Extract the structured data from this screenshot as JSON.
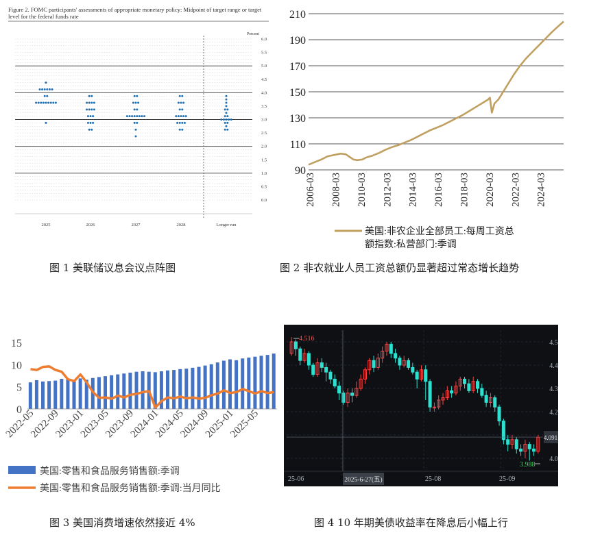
{
  "captions": {
    "fig1": "图 1  美联储议息会议点阵图",
    "fig2": "图 2 非农就业人员工资总额仍显著超过常态增长趋势",
    "fig3": "图 3  美国消费增速依然接近 4%",
    "fig4": "图 4  10 年期美债收益率在降息后小幅上行"
  },
  "chart_data": [
    {
      "id": "dot-plot",
      "type": "scatter",
      "title": "Figure 2. FOMC participants' assessments of appropriate monetary policy: Midpoint of target range or target level for the federal funds rate",
      "ylabel": "Percent",
      "ylim": [
        0,
        6
      ],
      "y_ticks": [
        "6.0",
        "5.5",
        "5.0",
        "4.5",
        "4.0",
        "3.5",
        "3.0",
        "2.5",
        "2.0",
        "1.5",
        "1.0",
        "0.5",
        "0.0"
      ],
      "categories": [
        "2025",
        "2026",
        "2027",
        "2028",
        "Longer run"
      ],
      "dots": [
        {
          "category": "2025",
          "levels": [
            {
              "y": 4.375,
              "n": 1
            },
            {
              "y": 4.125,
              "n": 6
            },
            {
              "y": 3.875,
              "n": 2
            },
            {
              "y": 3.625,
              "n": 9
            },
            {
              "y": 2.875,
              "n": 1
            }
          ]
        },
        {
          "category": "2026",
          "levels": [
            {
              "y": 3.875,
              "n": 2
            },
            {
              "y": 3.625,
              "n": 4
            },
            {
              "y": 3.375,
              "n": 4
            },
            {
              "y": 3.125,
              "n": 3
            },
            {
              "y": 2.875,
              "n": 3
            },
            {
              "y": 2.625,
              "n": 2
            }
          ]
        },
        {
          "category": "2027",
          "levels": [
            {
              "y": 3.875,
              "n": 2
            },
            {
              "y": 3.625,
              "n": 3
            },
            {
              "y": 3.375,
              "n": 2
            },
            {
              "y": 3.125,
              "n": 8
            },
            {
              "y": 2.875,
              "n": 2
            },
            {
              "y": 2.625,
              "n": 1
            },
            {
              "y": 2.375,
              "n": 1
            }
          ]
        },
        {
          "category": "2028",
          "levels": [
            {
              "y": 3.875,
              "n": 2
            },
            {
              "y": 3.625,
              "n": 3
            },
            {
              "y": 3.375,
              "n": 2
            },
            {
              "y": 3.125,
              "n": 5
            },
            {
              "y": 2.875,
              "n": 4
            },
            {
              "y": 2.625,
              "n": 2
            }
          ]
        },
        {
          "category": "Longer run",
          "levels": [
            {
              "y": 3.875,
              "n": 1
            },
            {
              "y": 3.75,
              "n": 1
            },
            {
              "y": 3.625,
              "n": 1
            },
            {
              "y": 3.5,
              "n": 1
            },
            {
              "y": 3.375,
              "n": 2
            },
            {
              "y": 3.25,
              "n": 1
            },
            {
              "y": 3.125,
              "n": 2
            },
            {
              "y": 3.0,
              "n": 5
            },
            {
              "y": 2.875,
              "n": 2
            },
            {
              "y": 2.75,
              "n": 1
            },
            {
              "y": 2.625,
              "n": 2
            }
          ]
        }
      ]
    },
    {
      "id": "payroll-line",
      "type": "line",
      "ylim": [
        90,
        210
      ],
      "y_ticks": [
        90,
        110,
        130,
        150,
        170,
        190,
        210
      ],
      "x_ticks": [
        "2006-03",
        "2008-03",
        "2010-03",
        "2012-03",
        "2014-03",
        "2016-03",
        "2018-03",
        "2020-03",
        "2022-03",
        "2024-03"
      ],
      "xlim": [
        2006.0,
        2025.9
      ],
      "series": [
        {
          "name": "美国:非农企业全部员工:每周工资总额指数:私营部门:季调",
          "color": "#c0a060",
          "points": [
            [
              2006.0,
              94
            ],
            [
              2006.5,
              96
            ],
            [
              2007.0,
              98
            ],
            [
              2007.5,
              100.5
            ],
            [
              2008.0,
              101.5
            ],
            [
              2008.5,
              102.5
            ],
            [
              2008.9,
              102
            ],
            [
              2009.2,
              100
            ],
            [
              2009.5,
              98
            ],
            [
              2009.8,
              97.5
            ],
            [
              2010.2,
              98
            ],
            [
              2010.5,
              99.5
            ],
            [
              2011.0,
              101
            ],
            [
              2011.5,
              103
            ],
            [
              2012.0,
              105.5
            ],
            [
              2012.5,
              107.5
            ],
            [
              2013.0,
              109
            ],
            [
              2013.5,
              111
            ],
            [
              2014.0,
              113
            ],
            [
              2014.5,
              115.5
            ],
            [
              2015.0,
              118
            ],
            [
              2015.5,
              120.5
            ],
            [
              2016.0,
              122.5
            ],
            [
              2016.5,
              124.5
            ],
            [
              2017.0,
              127
            ],
            [
              2017.5,
              129.5
            ],
            [
              2018.0,
              132
            ],
            [
              2018.5,
              135
            ],
            [
              2019.0,
              138
            ],
            [
              2019.5,
              141
            ],
            [
              2020.0,
              144
            ],
            [
              2020.15,
              145.5
            ],
            [
              2020.3,
              134
            ],
            [
              2020.5,
              141
            ],
            [
              2020.8,
              144
            ],
            [
              2021.0,
              147
            ],
            [
              2021.5,
              155
            ],
            [
              2022.0,
              163
            ],
            [
              2022.5,
              170
            ],
            [
              2023.0,
              176
            ],
            [
              2023.5,
              181
            ],
            [
              2024.0,
              186
            ],
            [
              2024.5,
              191
            ],
            [
              2025.0,
              196
            ],
            [
              2025.5,
              200.5
            ],
            [
              2025.9,
              204
            ]
          ]
        }
      ]
    },
    {
      "id": "retail-combo",
      "type": "bar",
      "ylim": [
        0,
        15
      ],
      "y_ticks": [
        0,
        5,
        10,
        15
      ],
      "x_ticks": [
        "2022-05",
        "2022-09",
        "2023-01",
        "2023-05",
        "2023-09",
        "2024-01",
        "2024-05",
        "2024-09",
        "2025-01",
        "2025-05"
      ],
      "categories": [
        "2022-05",
        "2022-06",
        "2022-07",
        "2022-08",
        "2022-09",
        "2022-10",
        "2022-11",
        "2022-12",
        "2023-01",
        "2023-02",
        "2023-03",
        "2023-04",
        "2023-05",
        "2023-06",
        "2023-07",
        "2023-08",
        "2023-09",
        "2023-10",
        "2023-11",
        "2023-12",
        "2024-01",
        "2024-02",
        "2024-03",
        "2024-04",
        "2024-05",
        "2024-06",
        "2024-07",
        "2024-08",
        "2024-09",
        "2024-10",
        "2024-11",
        "2024-12",
        "2025-01",
        "2025-02",
        "2025-03",
        "2025-04",
        "2025-05",
        "2025-06",
        "2025-07",
        "2025-08"
      ],
      "series": [
        {
          "name": "美国:零售和食品服务销售额:季调",
          "kind": "bar",
          "color": "#4472c4",
          "values": [
            6.0,
            6.5,
            6.2,
            6.3,
            6.4,
            6.8,
            6.7,
            6.3,
            6.9,
            6.6,
            7.0,
            7.2,
            7.4,
            7.6,
            7.8,
            8.0,
            8.2,
            8.4,
            8.5,
            8.4,
            8.3,
            8.5,
            8.7,
            8.8,
            9.0,
            9.1,
            9.3,
            9.5,
            9.8,
            10.1,
            10.5,
            10.9,
            11.2,
            11.0,
            11.4,
            11.6,
            11.8,
            12.0,
            12.2,
            12.5
          ]
        },
        {
          "name": "美国:零售和食品服务销售额:季调:当月同比",
          "kind": "line",
          "color": "#ed7d31",
          "values": [
            9.0,
            8.8,
            9.5,
            9.6,
            8.8,
            8.4,
            6.7,
            6.3,
            7.8,
            6.0,
            3.8,
            2.5,
            2.6,
            2.3,
            3.0,
            2.6,
            3.2,
            3.4,
            3.8,
            4.0,
            0.3,
            1.8,
            2.6,
            2.4,
            2.8,
            2.4,
            2.6,
            2.3,
            2.5,
            3.1,
            3.5,
            4.2,
            3.6,
            3.8,
            4.5,
            4.0,
            3.5,
            4.0,
            3.6,
            3.8
          ]
        }
      ]
    },
    {
      "id": "ust10y-candles",
      "type": "candlestick",
      "ylim": [
        3.95,
        4.55
      ],
      "y_ticks": [
        "4.50",
        "4.40",
        "4.30",
        "4.20",
        "4.10",
        "4.00"
      ],
      "x_ticks": [
        "25-06",
        "25-08",
        "25-09"
      ],
      "crosshair_date": "2025-6-27(五)",
      "crosshair_value": "4.091",
      "max_label": "4.516",
      "min_label": "3.988",
      "up_color": "#ff4040",
      "down_color": "#2ee0d0",
      "candles": [
        [
          4.45,
          4.5,
          4.52,
          4.44
        ],
        [
          4.5,
          4.47,
          4.51,
          4.44
        ],
        [
          4.47,
          4.42,
          4.48,
          4.4
        ],
        [
          4.42,
          4.45,
          4.47,
          4.41
        ],
        [
          4.45,
          4.4,
          4.46,
          4.38
        ],
        [
          4.4,
          4.36,
          4.41,
          4.35
        ],
        [
          4.36,
          4.41,
          4.43,
          4.35
        ],
        [
          4.41,
          4.39,
          4.43,
          4.37
        ],
        [
          4.39,
          4.37,
          4.41,
          4.33
        ],
        [
          4.37,
          4.34,
          4.38,
          4.32
        ],
        [
          4.34,
          4.31,
          4.36,
          4.3
        ],
        [
          4.31,
          4.28,
          4.33,
          4.25
        ],
        [
          4.28,
          4.24,
          4.29,
          4.23
        ],
        [
          4.24,
          4.28,
          4.3,
          4.22
        ],
        [
          4.28,
          4.27,
          4.3,
          4.24
        ],
        [
          4.27,
          4.3,
          4.33,
          4.26
        ],
        [
          4.3,
          4.34,
          4.36,
          4.29
        ],
        [
          4.34,
          4.38,
          4.39,
          4.32
        ],
        [
          4.38,
          4.42,
          4.43,
          4.36
        ],
        [
          4.42,
          4.39,
          4.44,
          4.37
        ],
        [
          4.39,
          4.43,
          4.45,
          4.38
        ],
        [
          4.43,
          4.46,
          4.48,
          4.41
        ],
        [
          4.46,
          4.49,
          4.5,
          4.44
        ],
        [
          4.49,
          4.45,
          4.5,
          4.43
        ],
        [
          4.45,
          4.43,
          4.47,
          4.41
        ],
        [
          4.43,
          4.4,
          4.44,
          4.38
        ],
        [
          4.4,
          4.42,
          4.44,
          4.39
        ],
        [
          4.42,
          4.39,
          4.43,
          4.38
        ],
        [
          4.39,
          4.37,
          4.41,
          4.36
        ],
        [
          4.37,
          4.34,
          4.38,
          4.3
        ],
        [
          4.34,
          4.38,
          4.4,
          4.33
        ],
        [
          4.38,
          4.33,
          4.4,
          4.25
        ],
        [
          4.33,
          4.22,
          4.34,
          4.2
        ],
        [
          4.22,
          4.22,
          4.24,
          4.2
        ],
        [
          4.22,
          4.25,
          4.27,
          4.21
        ],
        [
          4.25,
          4.26,
          4.28,
          4.23
        ],
        [
          4.26,
          4.29,
          4.31,
          4.25
        ],
        [
          4.29,
          4.28,
          4.31,
          4.26
        ],
        [
          4.28,
          4.31,
          4.33,
          4.27
        ],
        [
          4.31,
          4.34,
          4.35,
          4.29
        ],
        [
          4.34,
          4.32,
          4.35,
          4.3
        ],
        [
          4.32,
          4.29,
          4.34,
          4.28
        ],
        [
          4.29,
          4.33,
          4.35,
          4.28
        ],
        [
          4.33,
          4.3,
          4.34,
          4.28
        ],
        [
          4.3,
          4.27,
          4.32,
          4.26
        ],
        [
          4.27,
          4.24,
          4.29,
          4.22
        ],
        [
          4.24,
          4.26,
          4.28,
          4.22
        ],
        [
          4.26,
          4.22,
          4.27,
          4.2
        ],
        [
          4.22,
          4.16,
          4.23,
          4.14
        ],
        [
          4.16,
          4.08,
          4.17,
          4.06
        ],
        [
          4.08,
          4.06,
          4.1,
          4.03
        ],
        [
          4.06,
          4.08,
          4.1,
          4.04
        ],
        [
          4.08,
          4.04,
          4.09,
          4.02
        ],
        [
          4.04,
          4.03,
          4.06,
          4.01
        ],
        [
          4.03,
          4.06,
          4.08,
          4.0
        ],
        [
          4.06,
          4.04,
          4.07,
          3.99
        ],
        [
          4.04,
          4.03,
          4.06,
          4.01
        ],
        [
          4.03,
          4.09,
          4.1,
          4.02
        ]
      ]
    }
  ]
}
